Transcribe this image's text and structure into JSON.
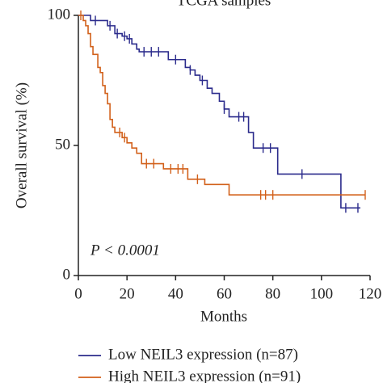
{
  "chart_data": {
    "type": "step",
    "title": "TCGA samples",
    "x_label": "Months",
    "y_label": "Overall survival (%)",
    "annotation": "P < 0.0001",
    "xlim": [
      0,
      120
    ],
    "xticks": [
      0,
      20,
      40,
      60,
      80,
      100,
      120
    ],
    "ylim": [
      0,
      100
    ],
    "yticks": [
      0,
      50,
      100
    ],
    "series": [
      {
        "name": "Low NEIL3 expression (n=87)",
        "color": "#2b2b8c",
        "x": [
          0,
          5,
          12,
          15,
          18,
          20,
          22,
          24,
          25,
          37,
          44,
          46,
          48,
          50,
          53,
          55,
          58,
          60,
          62,
          70,
          72,
          82,
          108,
          116
        ],
        "values": [
          100,
          98,
          96,
          93,
          92,
          91,
          89,
          87,
          86,
          83,
          80,
          79,
          77,
          75,
          72,
          70,
          67,
          64,
          61,
          55,
          49,
          39,
          26,
          26
        ],
        "censor_x": [
          7,
          13,
          16,
          19,
          21,
          27,
          30,
          33,
          40,
          46,
          51,
          60,
          66,
          68,
          76,
          79,
          92,
          110,
          115
        ],
        "censor_values": [
          98,
          96,
          93,
          92,
          91,
          86,
          86,
          86,
          83,
          79,
          75,
          64,
          61,
          61,
          49,
          49,
          39,
          26,
          26
        ]
      },
      {
        "name": "High NEIL3 expression (n=91)",
        "color": "#d2601a",
        "x": [
          0,
          2,
          3,
          4,
          5,
          6,
          8,
          9,
          10,
          11,
          12,
          13,
          14,
          15,
          18,
          20,
          22,
          24,
          26,
          35,
          45,
          52,
          62,
          118
        ],
        "values": [
          100,
          98,
          96,
          93,
          88,
          85,
          80,
          78,
          73,
          70,
          66,
          60,
          57,
          55,
          53,
          51,
          49,
          47,
          43,
          41,
          37,
          35,
          31,
          31
        ],
        "censor_x": [
          1,
          17,
          19,
          28,
          31,
          38,
          41,
          43,
          49,
          75,
          77,
          80,
          118
        ],
        "censor_values": [
          100,
          55,
          53,
          43,
          43,
          41,
          41,
          41,
          37,
          31,
          31,
          31,
          31
        ]
      }
    ]
  }
}
